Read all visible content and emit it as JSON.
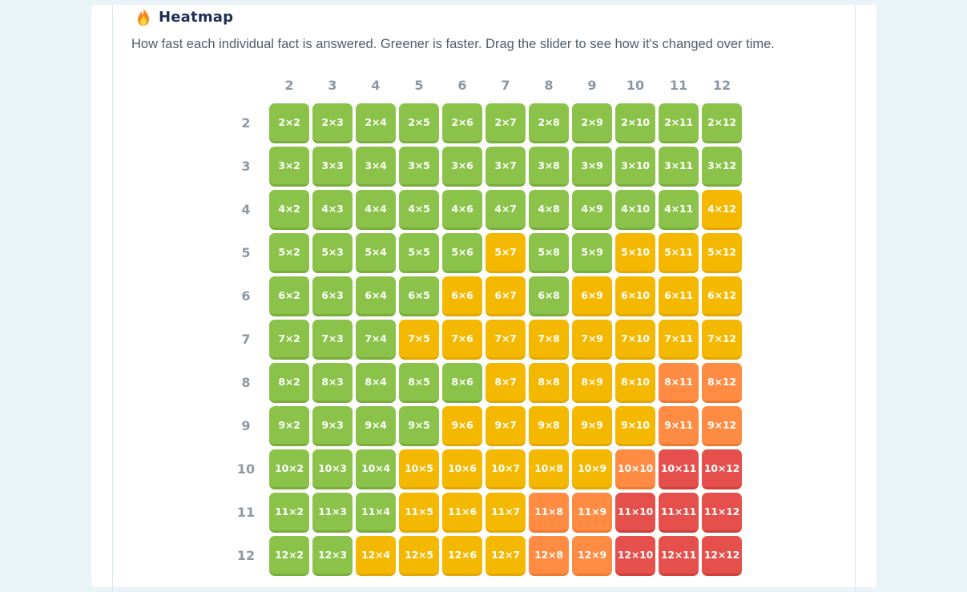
{
  "heatmap": {
    "title": "Heatmap",
    "icon": "flame-icon",
    "description": "How fast each individual fact is answered. Greener is faster. Drag the slider to see how it's changed over time.",
    "colors": {
      "fast": "#8bc34a",
      "medium": "#f5b800",
      "slow": "#ff8c42",
      "slowest": "#e5504c"
    },
    "columns": [
      "2",
      "3",
      "4",
      "5",
      "6",
      "7",
      "8",
      "9",
      "10",
      "11",
      "12"
    ],
    "rows": [
      {
        "label": "2",
        "cells": [
          {
            "text": "2×2",
            "speed": "g"
          },
          {
            "text": "2×3",
            "speed": "g"
          },
          {
            "text": "2×4",
            "speed": "g"
          },
          {
            "text": "2×5",
            "speed": "g"
          },
          {
            "text": "2×6",
            "speed": "g"
          },
          {
            "text": "2×7",
            "speed": "g"
          },
          {
            "text": "2×8",
            "speed": "g"
          },
          {
            "text": "2×9",
            "speed": "g"
          },
          {
            "text": "2×10",
            "speed": "g"
          },
          {
            "text": "2×11",
            "speed": "g"
          },
          {
            "text": "2×12",
            "speed": "g"
          }
        ]
      },
      {
        "label": "3",
        "cells": [
          {
            "text": "3×2",
            "speed": "g"
          },
          {
            "text": "3×3",
            "speed": "g"
          },
          {
            "text": "3×4",
            "speed": "g"
          },
          {
            "text": "3×5",
            "speed": "g"
          },
          {
            "text": "3×6",
            "speed": "g"
          },
          {
            "text": "3×7",
            "speed": "g"
          },
          {
            "text": "3×8",
            "speed": "g"
          },
          {
            "text": "3×9",
            "speed": "g"
          },
          {
            "text": "3×10",
            "speed": "g"
          },
          {
            "text": "3×11",
            "speed": "g"
          },
          {
            "text": "3×12",
            "speed": "g"
          }
        ]
      },
      {
        "label": "4",
        "cells": [
          {
            "text": "4×2",
            "speed": "g"
          },
          {
            "text": "4×3",
            "speed": "g"
          },
          {
            "text": "4×4",
            "speed": "g"
          },
          {
            "text": "4×5",
            "speed": "g"
          },
          {
            "text": "4×6",
            "speed": "g"
          },
          {
            "text": "4×7",
            "speed": "g"
          },
          {
            "text": "4×8",
            "speed": "g"
          },
          {
            "text": "4×9",
            "speed": "g"
          },
          {
            "text": "4×10",
            "speed": "g"
          },
          {
            "text": "4×11",
            "speed": "g"
          },
          {
            "text": "4×12",
            "speed": "y"
          }
        ]
      },
      {
        "label": "5",
        "cells": [
          {
            "text": "5×2",
            "speed": "g"
          },
          {
            "text": "5×3",
            "speed": "g"
          },
          {
            "text": "5×4",
            "speed": "g"
          },
          {
            "text": "5×5",
            "speed": "g"
          },
          {
            "text": "5×6",
            "speed": "g"
          },
          {
            "text": "5×7",
            "speed": "y"
          },
          {
            "text": "5×8",
            "speed": "g"
          },
          {
            "text": "5×9",
            "speed": "g"
          },
          {
            "text": "5×10",
            "speed": "y"
          },
          {
            "text": "5×11",
            "speed": "y"
          },
          {
            "text": "5×12",
            "speed": "y"
          }
        ]
      },
      {
        "label": "6",
        "cells": [
          {
            "text": "6×2",
            "speed": "g"
          },
          {
            "text": "6×3",
            "speed": "g"
          },
          {
            "text": "6×4",
            "speed": "g"
          },
          {
            "text": "6×5",
            "speed": "g"
          },
          {
            "text": "6×6",
            "speed": "y"
          },
          {
            "text": "6×7",
            "speed": "y"
          },
          {
            "text": "6×8",
            "speed": "g"
          },
          {
            "text": "6×9",
            "speed": "y"
          },
          {
            "text": "6×10",
            "speed": "y"
          },
          {
            "text": "6×11",
            "speed": "y"
          },
          {
            "text": "6×12",
            "speed": "y"
          }
        ]
      },
      {
        "label": "7",
        "cells": [
          {
            "text": "7×2",
            "speed": "g"
          },
          {
            "text": "7×3",
            "speed": "g"
          },
          {
            "text": "7×4",
            "speed": "g"
          },
          {
            "text": "7×5",
            "speed": "y"
          },
          {
            "text": "7×6",
            "speed": "y"
          },
          {
            "text": "7×7",
            "speed": "y"
          },
          {
            "text": "7×8",
            "speed": "y"
          },
          {
            "text": "7×9",
            "speed": "y"
          },
          {
            "text": "7×10",
            "speed": "y"
          },
          {
            "text": "7×11",
            "speed": "y"
          },
          {
            "text": "7×12",
            "speed": "y"
          }
        ]
      },
      {
        "label": "8",
        "cells": [
          {
            "text": "8×2",
            "speed": "g"
          },
          {
            "text": "8×3",
            "speed": "g"
          },
          {
            "text": "8×4",
            "speed": "g"
          },
          {
            "text": "8×5",
            "speed": "g"
          },
          {
            "text": "8×6",
            "speed": "g"
          },
          {
            "text": "8×7",
            "speed": "y"
          },
          {
            "text": "8×8",
            "speed": "y"
          },
          {
            "text": "8×9",
            "speed": "y"
          },
          {
            "text": "8×10",
            "speed": "y"
          },
          {
            "text": "8×11",
            "speed": "o"
          },
          {
            "text": "8×12",
            "speed": "o"
          }
        ]
      },
      {
        "label": "9",
        "cells": [
          {
            "text": "9×2",
            "speed": "g"
          },
          {
            "text": "9×3",
            "speed": "g"
          },
          {
            "text": "9×4",
            "speed": "g"
          },
          {
            "text": "9×5",
            "speed": "g"
          },
          {
            "text": "9×6",
            "speed": "y"
          },
          {
            "text": "9×7",
            "speed": "y"
          },
          {
            "text": "9×8",
            "speed": "y"
          },
          {
            "text": "9×9",
            "speed": "y"
          },
          {
            "text": "9×10",
            "speed": "y"
          },
          {
            "text": "9×11",
            "speed": "o"
          },
          {
            "text": "9×12",
            "speed": "o"
          }
        ]
      },
      {
        "label": "10",
        "cells": [
          {
            "text": "10×2",
            "speed": "g"
          },
          {
            "text": "10×3",
            "speed": "g"
          },
          {
            "text": "10×4",
            "speed": "g"
          },
          {
            "text": "10×5",
            "speed": "y"
          },
          {
            "text": "10×6",
            "speed": "y"
          },
          {
            "text": "10×7",
            "speed": "y"
          },
          {
            "text": "10×8",
            "speed": "y"
          },
          {
            "text": "10×9",
            "speed": "y"
          },
          {
            "text": "10×10",
            "speed": "o"
          },
          {
            "text": "10×11",
            "speed": "r"
          },
          {
            "text": "10×12",
            "speed": "r"
          }
        ]
      },
      {
        "label": "11",
        "cells": [
          {
            "text": "11×2",
            "speed": "g"
          },
          {
            "text": "11×3",
            "speed": "g"
          },
          {
            "text": "11×4",
            "speed": "g"
          },
          {
            "text": "11×5",
            "speed": "y"
          },
          {
            "text": "11×6",
            "speed": "y"
          },
          {
            "text": "11×7",
            "speed": "y"
          },
          {
            "text": "11×8",
            "speed": "o"
          },
          {
            "text": "11×9",
            "speed": "o"
          },
          {
            "text": "11×10",
            "speed": "r"
          },
          {
            "text": "11×11",
            "speed": "r"
          },
          {
            "text": "11×12",
            "speed": "r"
          }
        ]
      },
      {
        "label": "12",
        "cells": [
          {
            "text": "12×2",
            "speed": "g"
          },
          {
            "text": "12×3",
            "speed": "g"
          },
          {
            "text": "12×4",
            "speed": "y"
          },
          {
            "text": "12×5",
            "speed": "y"
          },
          {
            "text": "12×6",
            "speed": "y"
          },
          {
            "text": "12×7",
            "speed": "y"
          },
          {
            "text": "12×8",
            "speed": "o"
          },
          {
            "text": "12×9",
            "speed": "o"
          },
          {
            "text": "12×10",
            "speed": "r"
          },
          {
            "text": "12×11",
            "speed": "r"
          },
          {
            "text": "12×12",
            "speed": "r"
          }
        ]
      }
    ]
  }
}
